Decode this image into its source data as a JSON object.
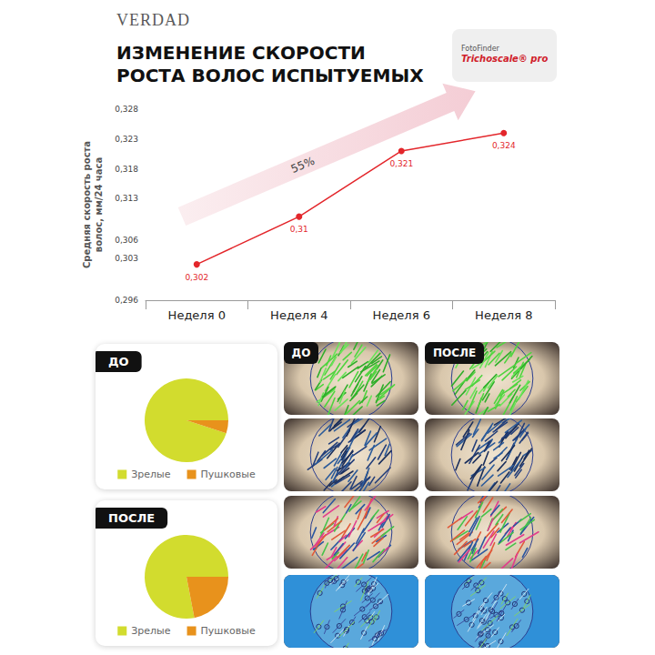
{
  "header": {
    "brand": "VERDAD",
    "title": "ИЗМЕНЕНИЕ СКОРОСТИ РОСТА ВОЛОС ИСПЫТУЕМЫХ",
    "badge": {
      "maker": "FotoFinder",
      "product": "Trichoscale® pro"
    }
  },
  "chart_data": [
    {
      "type": "line",
      "y_label": "Средняя скорость роста волос, мм/24 часа",
      "categories": [
        "Неделя 0",
        "Неделя 4",
        "Неделя 6",
        "Неделя 8"
      ],
      "values": [
        0.302,
        0.31,
        0.321,
        0.324
      ],
      "value_labels": [
        "0,302",
        "0,31",
        "0,321",
        "0,324"
      ],
      "color": "#e3262b",
      "marker": "circle",
      "data_labels": true,
      "ylim": [
        0.296,
        0.328
      ],
      "yticks": [
        {
          "value": 0.296,
          "label": "0,296"
        },
        {
          "value": 0.303,
          "label": "0,303"
        },
        {
          "value": 0.306,
          "label": "0,306"
        },
        {
          "value": 0.313,
          "label": "0,313"
        },
        {
          "value": 0.318,
          "label": "0,318"
        },
        {
          "value": 0.323,
          "label": "0,323"
        },
        {
          "value": 0.328,
          "label": "0,328"
        }
      ],
      "grid": false,
      "annotations": [
        {
          "text": "55%"
        }
      ]
    },
    {
      "type": "pie",
      "title": "ДО",
      "categories": [
        "Зрелые",
        "Пушковые"
      ],
      "values": [
        95,
        5
      ],
      "colors": [
        "#d2dc2e",
        "#e8921c"
      ],
      "legend": "bottom"
    },
    {
      "type": "pie",
      "title": "ПОСЛЕ",
      "categories": [
        "Зрелые",
        "Пушковые"
      ],
      "values": [
        78,
        22
      ],
      "colors": [
        "#d2dc2e",
        "#e8921c"
      ],
      "legend": "bottom"
    }
  ],
  "images": {
    "columns": [
      "ДО",
      "ПОСЛЕ"
    ]
  }
}
